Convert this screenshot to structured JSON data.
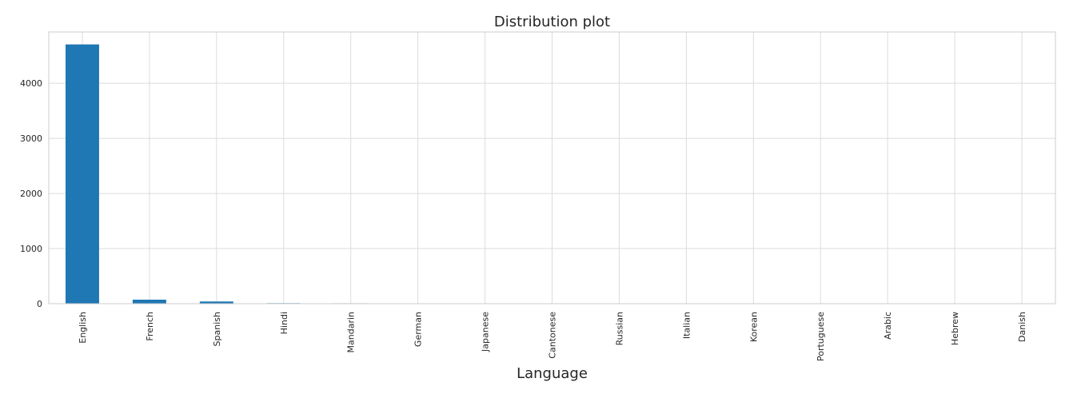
{
  "chart_data": {
    "type": "bar",
    "title": "Distribution plot",
    "xlabel": "Language",
    "ylabel": "",
    "categories": [
      "English",
      "French",
      "Spanish",
      "Hindi",
      "Mandarin",
      "German",
      "Japanese",
      "Cantonese",
      "Russian",
      "Italian",
      "Korean",
      "Portuguese",
      "Arabic",
      "Hebrew",
      "Danish"
    ],
    "values": [
      4704,
      73,
      40,
      10,
      8,
      7,
      5,
      4,
      4,
      3,
      3,
      2,
      2,
      1,
      1
    ],
    "ylim": [
      0,
      4930
    ],
    "yticks": [
      0,
      1000,
      2000,
      3000,
      4000
    ],
    "grid": true,
    "bar_color": "#1f77b4"
  }
}
